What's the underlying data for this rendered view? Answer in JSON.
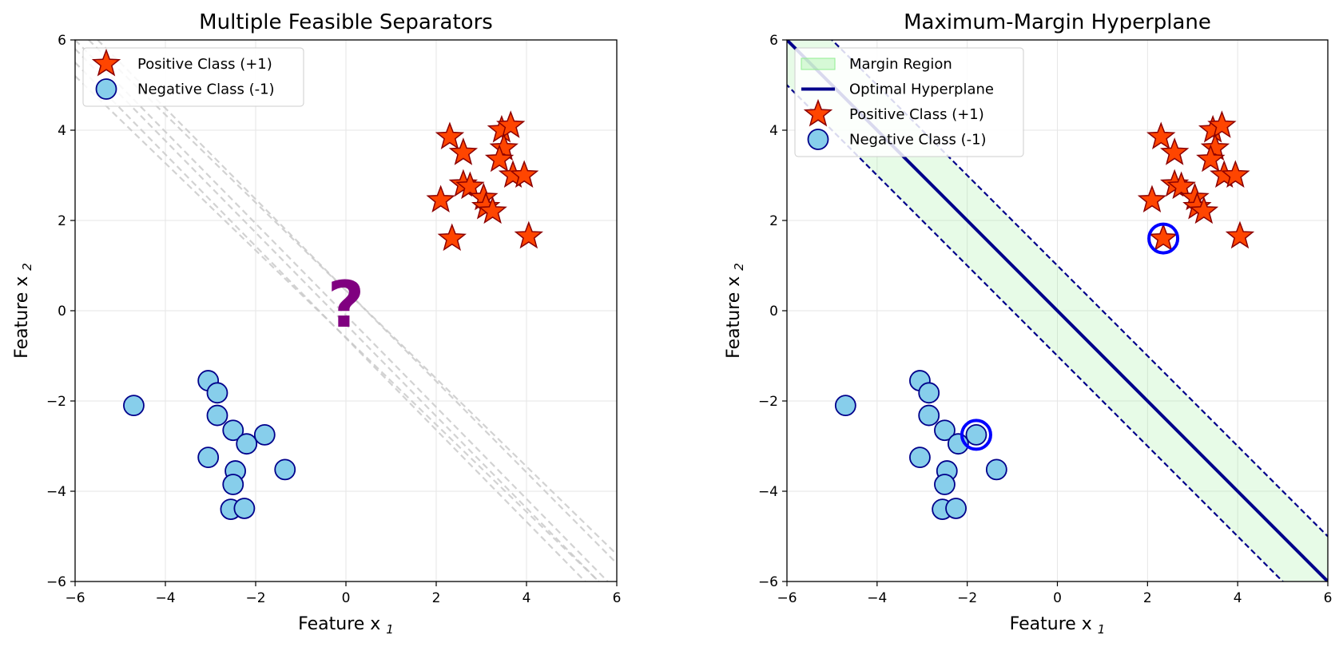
{
  "chart_data": [
    {
      "type": "scatter",
      "title": "Multiple Feasible Separators",
      "xlabel": "Feature x",
      "xlabel_sub": "1",
      "ylabel": "Feature x",
      "ylabel_sub": "2",
      "xlim": [
        -6,
        6
      ],
      "ylim": [
        -6,
        6
      ],
      "ticks": [
        -6,
        -4,
        -2,
        0,
        2,
        4,
        6
      ],
      "grid": true,
      "legend_position": "top-left",
      "annotation": "?",
      "annotation_point": [
        0,
        0
      ],
      "candidate_separators": [
        {
          "points": [
            [
              -5.7,
              6.0
            ],
            [
              6.0,
              -5.4
            ]
          ]
        },
        {
          "points": [
            [
              -5.5,
              6.0
            ],
            [
              6.0,
              -5.6
            ]
          ]
        },
        {
          "points": [
            [
              -6.0,
              6.0
            ],
            [
              5.8,
              -6.0
            ]
          ]
        },
        {
          "points": [
            [
              -6.0,
              5.8
            ],
            [
              5.6,
              -6.0
            ]
          ]
        },
        {
          "points": [
            [
              -6.0,
              5.5
            ],
            [
              5.3,
              -6.0
            ]
          ]
        },
        {
          "points": [
            [
              -6.0,
              5.2
            ],
            [
              5.6,
              -6.0
            ]
          ]
        }
      ],
      "series": [
        {
          "name": "Positive Class (+1)",
          "marker": "star",
          "fill": "#ff4500",
          "edge": "#8b0000",
          "points": [
            [
              2.3,
              3.85
            ],
            [
              2.6,
              3.5
            ],
            [
              3.45,
              4.0
            ],
            [
              3.65,
              4.1
            ],
            [
              3.5,
              3.6
            ],
            [
              3.4,
              3.35
            ],
            [
              3.7,
              3.0
            ],
            [
              3.95,
              3.0
            ],
            [
              2.6,
              2.8
            ],
            [
              2.75,
              2.75
            ],
            [
              3.05,
              2.5
            ],
            [
              3.1,
              2.3
            ],
            [
              3.25,
              2.2
            ],
            [
              2.1,
              2.45
            ],
            [
              2.35,
              1.6
            ],
            [
              4.05,
              1.65
            ]
          ]
        },
        {
          "name": "Negative Class (-1)",
          "marker": "circle",
          "fill": "#87ceeb",
          "edge": "#00008b",
          "points": [
            [
              -3.05,
              -1.55
            ],
            [
              -2.85,
              -1.82
            ],
            [
              -2.85,
              -2.32
            ],
            [
              -2.5,
              -2.65
            ],
            [
              -2.2,
              -2.95
            ],
            [
              -1.8,
              -2.75
            ],
            [
              -3.05,
              -3.25
            ],
            [
              -2.45,
              -3.55
            ],
            [
              -2.5,
              -3.85
            ],
            [
              -2.55,
              -4.4
            ],
            [
              -2.25,
              -4.38
            ],
            [
              -1.35,
              -3.52
            ],
            [
              -4.7,
              -2.1
            ]
          ]
        }
      ]
    },
    {
      "type": "scatter",
      "title": "Maximum-Margin Hyperplane",
      "xlabel": "Feature x",
      "xlabel_sub": "1",
      "ylabel": "Feature x",
      "ylabel_sub": "2",
      "xlim": [
        -6,
        6
      ],
      "ylim": [
        -6,
        6
      ],
      "ticks": [
        -6,
        -4,
        -2,
        0,
        2,
        4,
        6
      ],
      "grid": true,
      "legend_position": "top-left",
      "hyperplane": {
        "slope": -1,
        "intercept": 0,
        "color": "#00008b"
      },
      "margin_offsets": [
        1,
        -1
      ],
      "margin_color": "#90ee90",
      "support_vectors": [
        [
          2.35,
          1.6
        ],
        [
          -1.8,
          -2.75
        ]
      ],
      "support_vector_color": "#0000ff",
      "legend": [
        "Margin Region",
        "Optimal Hyperplane",
        "Positive Class (+1)",
        "Negative Class (-1)"
      ],
      "series": [
        {
          "name": "Positive Class (+1)",
          "marker": "star",
          "fill": "#ff4500",
          "edge": "#8b0000",
          "points": [
            [
              2.3,
              3.85
            ],
            [
              2.6,
              3.5
            ],
            [
              3.45,
              4.0
            ],
            [
              3.65,
              4.1
            ],
            [
              3.5,
              3.6
            ],
            [
              3.4,
              3.35
            ],
            [
              3.7,
              3.0
            ],
            [
              3.95,
              3.0
            ],
            [
              2.6,
              2.8
            ],
            [
              2.75,
              2.75
            ],
            [
              3.05,
              2.5
            ],
            [
              3.1,
              2.3
            ],
            [
              3.25,
              2.2
            ],
            [
              2.1,
              2.45
            ],
            [
              2.35,
              1.6
            ],
            [
              4.05,
              1.65
            ]
          ]
        },
        {
          "name": "Negative Class (-1)",
          "marker": "circle",
          "fill": "#87ceeb",
          "edge": "#00008b",
          "points": [
            [
              -3.05,
              -1.55
            ],
            [
              -2.85,
              -1.82
            ],
            [
              -2.85,
              -2.32
            ],
            [
              -2.5,
              -2.65
            ],
            [
              -2.2,
              -2.95
            ],
            [
              -1.8,
              -2.75
            ],
            [
              -3.05,
              -3.25
            ],
            [
              -2.45,
              -3.55
            ],
            [
              -2.5,
              -3.85
            ],
            [
              -2.55,
              -4.4
            ],
            [
              -2.25,
              -4.38
            ],
            [
              -1.35,
              -3.52
            ],
            [
              -4.7,
              -2.1
            ]
          ]
        }
      ]
    }
  ]
}
